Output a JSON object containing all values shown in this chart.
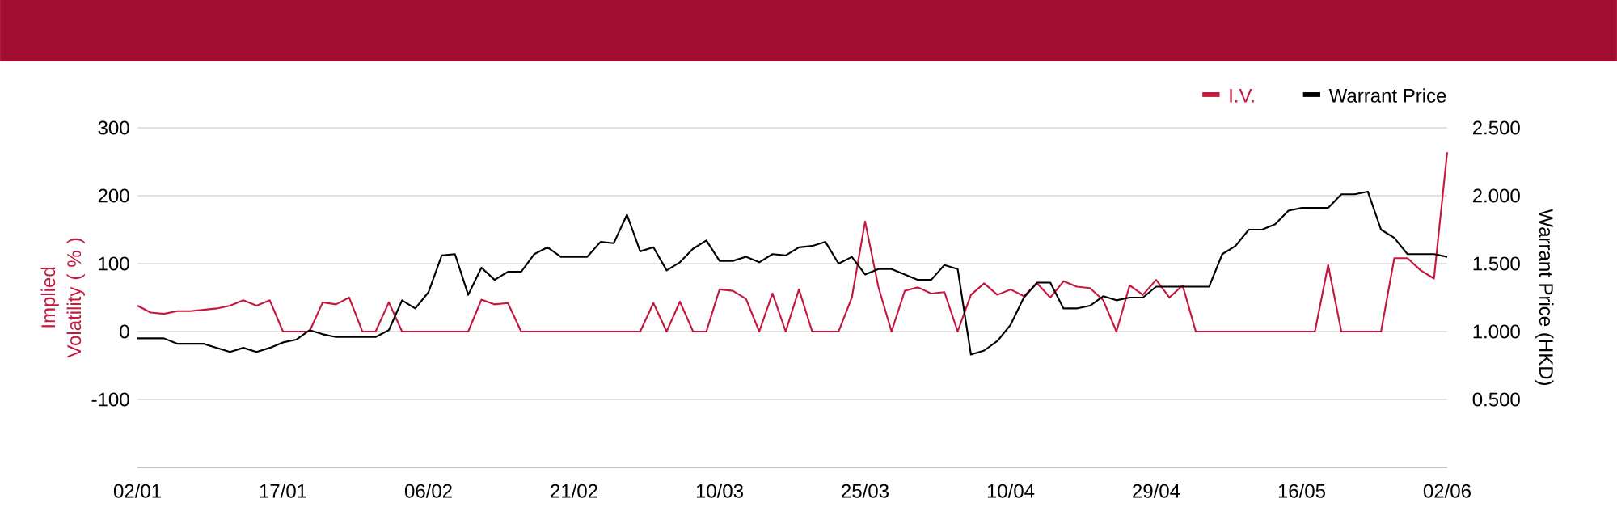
{
  "chart_data": {
    "type": "line",
    "categories": [
      "02/01",
      null,
      null,
      null,
      null,
      null,
      null,
      null,
      null,
      null,
      null,
      "17/01",
      null,
      null,
      null,
      null,
      null,
      null,
      null,
      null,
      null,
      null,
      "06/02",
      null,
      null,
      null,
      null,
      null,
      null,
      null,
      null,
      null,
      null,
      "21/02",
      null,
      null,
      null,
      null,
      null,
      null,
      null,
      null,
      null,
      null,
      "10/03",
      null,
      null,
      null,
      null,
      null,
      null,
      null,
      null,
      null,
      null,
      "25/03",
      null,
      null,
      null,
      null,
      null,
      null,
      null,
      null,
      null,
      null,
      "10/04",
      null,
      null,
      null,
      null,
      null,
      null,
      null,
      null,
      null,
      null,
      "29/04",
      null,
      null,
      null,
      null,
      null,
      null,
      null,
      null,
      null,
      null,
      "16/05",
      null,
      null,
      null,
      null,
      null,
      null,
      null,
      null,
      null,
      null,
      "02/06"
    ],
    "series": [
      {
        "name": "I.V.",
        "color": "#c4183f",
        "axis": "y",
        "values": [
          38,
          28,
          26,
          30,
          30,
          32,
          34,
          38,
          46,
          38,
          46,
          0,
          0,
          0,
          43,
          40,
          50,
          0,
          0,
          43,
          0,
          0,
          0,
          0,
          0,
          0,
          47,
          40,
          42,
          0,
          0,
          0,
          0,
          0,
          0,
          0,
          0,
          0,
          0,
          42,
          0,
          44,
          0,
          0,
          62,
          60,
          48,
          0,
          56,
          0,
          62,
          0,
          0,
          0,
          50,
          162,
          66,
          0,
          60,
          65,
          56,
          58,
          0,
          54,
          71,
          54,
          62,
          52,
          71,
          50,
          74,
          66,
          64,
          46,
          0,
          68,
          54,
          76,
          50,
          68,
          0,
          0,
          0,
          0,
          0,
          0,
          0,
          0,
          0,
          0,
          98,
          0,
          0,
          0,
          0,
          108,
          108,
          90,
          78,
          264
        ]
      },
      {
        "name": "Warrant Price",
        "color": "#000000",
        "axis": "y2",
        "values": [
          0.95,
          0.95,
          0.95,
          0.91,
          0.91,
          0.91,
          0.88,
          0.85,
          0.88,
          0.85,
          0.88,
          0.92,
          0.94,
          1.01,
          0.98,
          0.96,
          0.96,
          0.96,
          0.96,
          1.01,
          1.23,
          1.17,
          1.29,
          1.56,
          1.57,
          1.27,
          1.47,
          1.38,
          1.44,
          1.44,
          1.57,
          1.62,
          1.55,
          1.55,
          1.55,
          1.66,
          1.65,
          1.86,
          1.59,
          1.62,
          1.45,
          1.51,
          1.61,
          1.67,
          1.52,
          1.52,
          1.55,
          1.51,
          1.57,
          1.56,
          1.62,
          1.63,
          1.66,
          1.5,
          1.55,
          1.42,
          1.46,
          1.46,
          1.42,
          1.38,
          1.38,
          1.49,
          1.46,
          0.83,
          0.86,
          0.93,
          1.05,
          1.25,
          1.36,
          1.36,
          1.17,
          1.17,
          1.19,
          1.26,
          1.23,
          1.25,
          1.25,
          1.33,
          1.33,
          1.33,
          1.33,
          1.33,
          1.57,
          1.63,
          1.75,
          1.75,
          1.79,
          1.89,
          1.91,
          1.91,
          1.91,
          2.01,
          2.01,
          2.03,
          1.75,
          1.69,
          1.57,
          1.57,
          1.57,
          1.55
        ]
      }
    ],
    "ylabel": "Implied Volatility ( % )",
    "y2label": "Warrant Price (HKD)",
    "ylim": [
      -200,
      300
    ],
    "yticks": [
      -100,
      0,
      100,
      200,
      300
    ],
    "y2lim": [
      0,
      2.5
    ],
    "y2ticks": [
      {
        "value": 0.5,
        "label": "0.500"
      },
      {
        "value": 1,
        "label": "1.000"
      },
      {
        "value": 1.5,
        "label": "1.500"
      },
      {
        "value": 2,
        "label": "2.000"
      },
      {
        "value": 2.5,
        "label": "2.500"
      }
    ],
    "grid": "y",
    "legend": "top right",
    "marker": "none",
    "line_style": "solid"
  }
}
